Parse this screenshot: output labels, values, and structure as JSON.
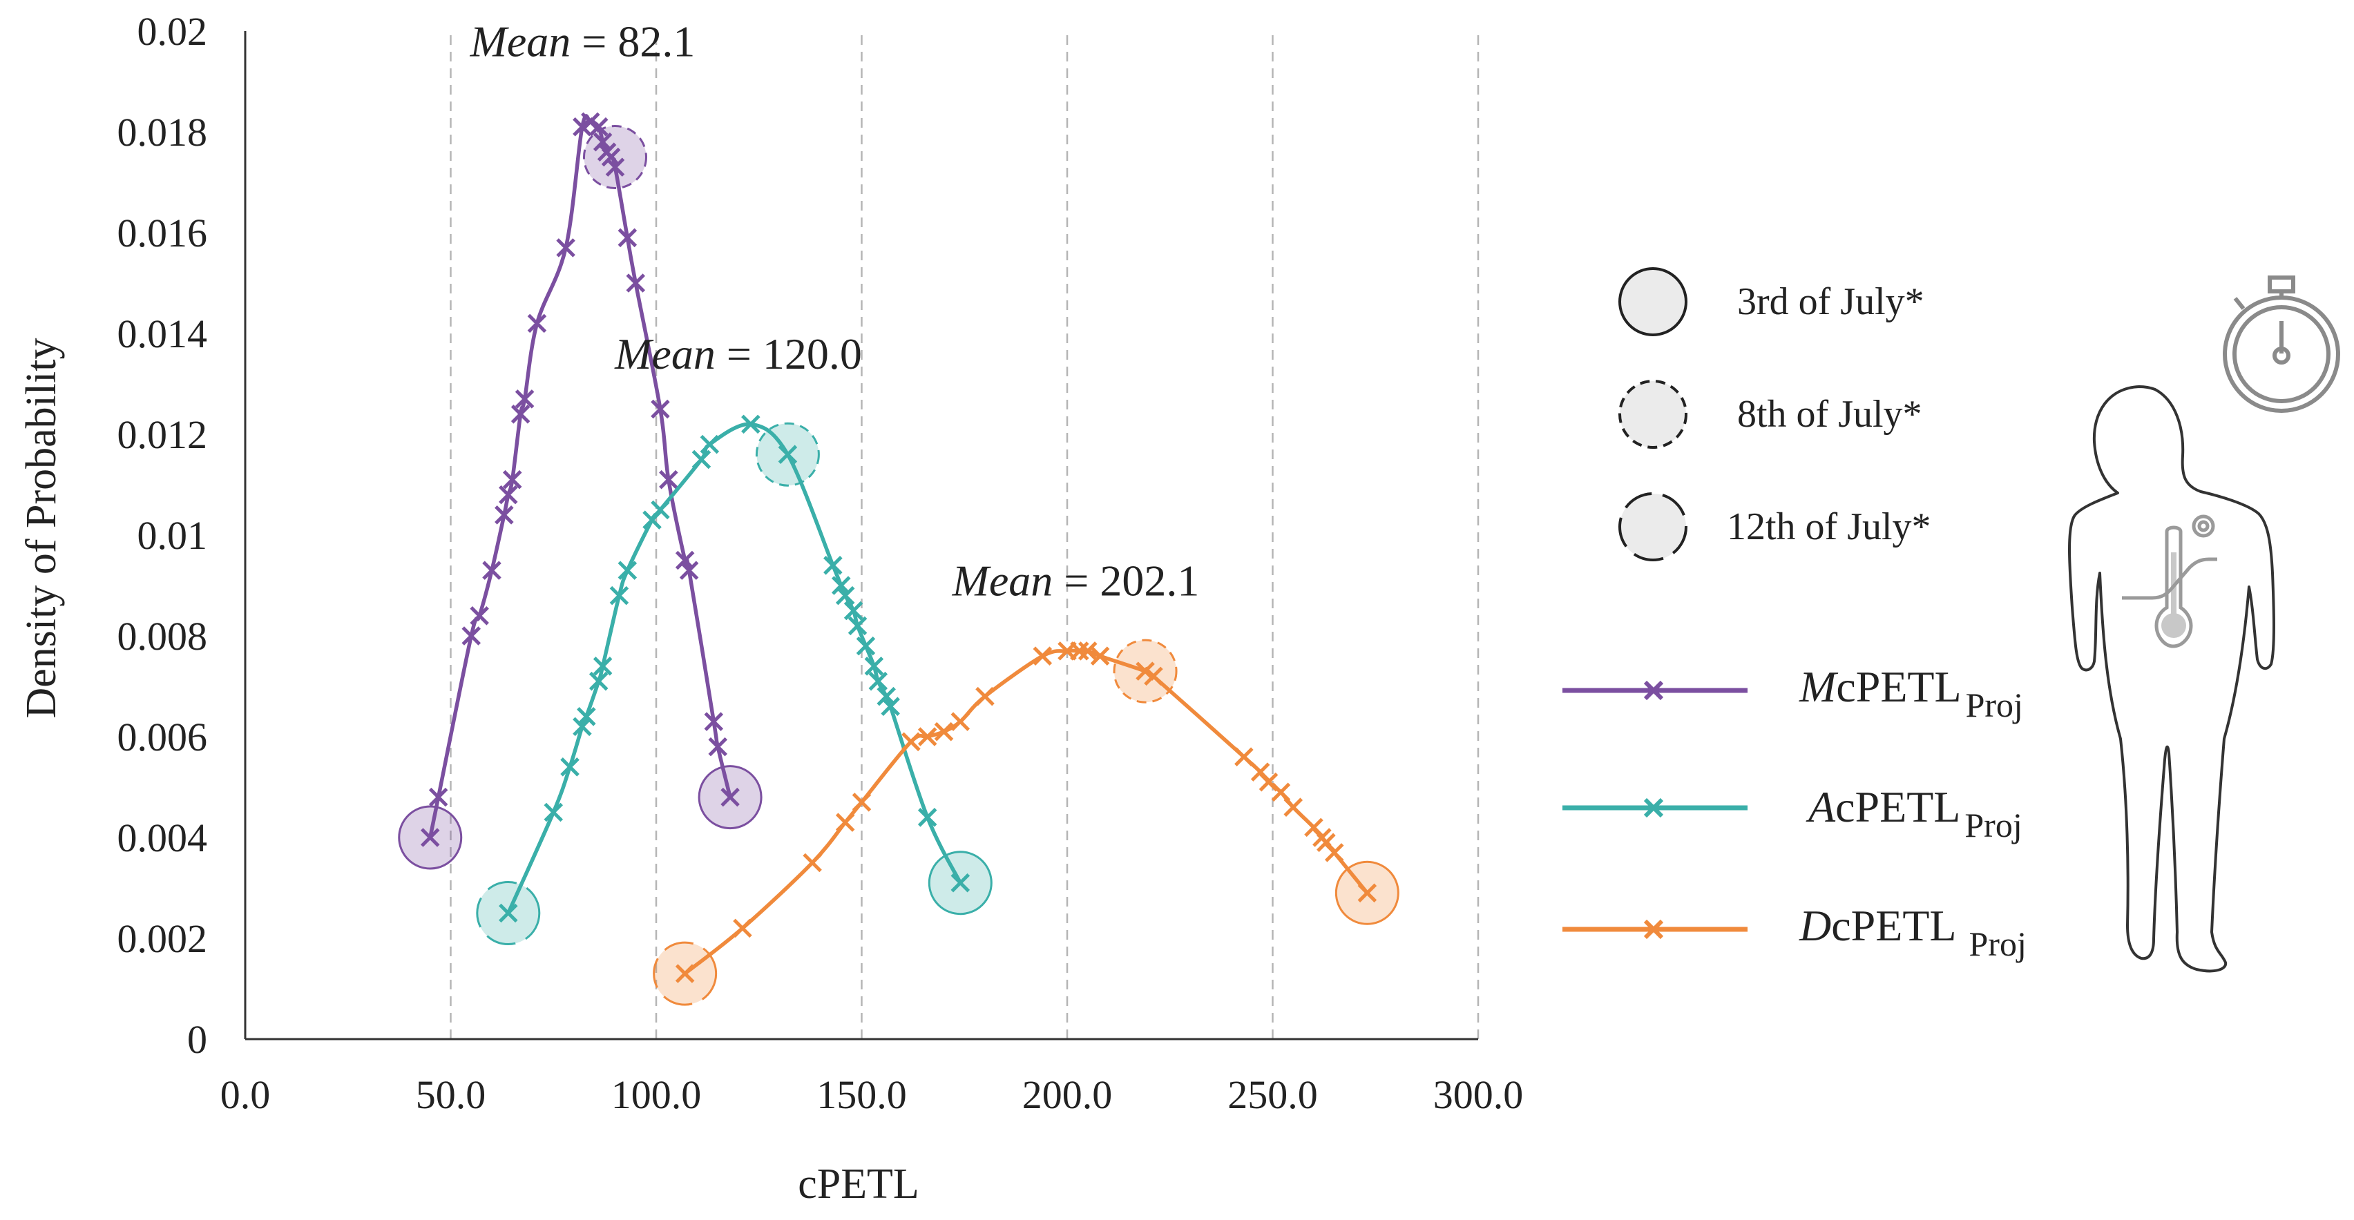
{
  "chart_data": {
    "type": "line",
    "xlabel": "cPETL",
    "ylabel": "Density of Probability",
    "xlim": [
      0,
      300
    ],
    "ylim": [
      0,
      0.02
    ],
    "x_ticks": [
      "0.0",
      "50.0",
      "100.0",
      "150.0",
      "200.0",
      "250.0",
      "300.0"
    ],
    "y_ticks": [
      "0",
      "0.002",
      "0.004",
      "0.006",
      "0.008",
      "0.01",
      "0.012",
      "0.014",
      "0.016",
      "0.018",
      "0.02"
    ],
    "x_tick_values": [
      0,
      50,
      100,
      150,
      200,
      250,
      300
    ],
    "y_tick_values": [
      0,
      0.002,
      0.004,
      0.006,
      0.008,
      0.01,
      0.012,
      0.014,
      0.016,
      0.018,
      0.02
    ],
    "x_gridlines": [
      50,
      100,
      150,
      200,
      250,
      300
    ],
    "series": [
      {
        "name": "McPETL Proj",
        "legend_prefix": "M",
        "legend_main": "cPETL",
        "legend_sub": "Proj",
        "color": "#7B4FA0",
        "mean_label": {
          "word": "Mean",
          "rest": " = 82.1",
          "x": 82.1,
          "y": 0.0195
        },
        "x": [
          45,
          47,
          55,
          57,
          60,
          63,
          64,
          65,
          67,
          68,
          71,
          78,
          82,
          84,
          86,
          87,
          88,
          89,
          90,
          93,
          95,
          101,
          103,
          107,
          108,
          114,
          115,
          118
        ],
        "y": [
          0.004,
          0.0048,
          0.008,
          0.0084,
          0.0093,
          0.0104,
          0.0108,
          0.0111,
          0.0124,
          0.0127,
          0.0142,
          0.0157,
          0.0181,
          0.0182,
          0.0181,
          0.0178,
          0.0176,
          0.0175,
          0.0173,
          0.0159,
          0.015,
          0.0125,
          0.0111,
          0.0095,
          0.0093,
          0.0063,
          0.0058,
          0.0048
        ],
        "markers": [
          {
            "x": 45,
            "y": 0.004,
            "date": "3rd of July*"
          },
          {
            "x": 90,
            "y": 0.0175,
            "date": "8th of July*"
          },
          {
            "x": 118,
            "y": 0.0048,
            "date": "3rd of July*"
          }
        ]
      },
      {
        "name": "AcPETL Proj",
        "legend_prefix": "A",
        "legend_main": "cPETL",
        "legend_sub": "Proj",
        "color": "#3AAFA9",
        "mean_label": {
          "word": "Mean",
          "rest": " = 120.0",
          "x": 120.0,
          "y": 0.0133
        },
        "x": [
          64,
          75,
          79,
          82,
          83,
          86,
          87,
          91,
          93,
          99,
          101,
          111,
          113,
          123,
          132,
          143,
          145,
          146,
          148,
          149,
          151,
          153,
          154,
          156,
          157,
          166,
          174
        ],
        "y": [
          0.0025,
          0.0045,
          0.0054,
          0.0062,
          0.0064,
          0.0071,
          0.0074,
          0.0088,
          0.0093,
          0.0103,
          0.0105,
          0.0115,
          0.0118,
          0.0122,
          0.0116,
          0.0094,
          0.009,
          0.0088,
          0.0085,
          0.0082,
          0.0078,
          0.0074,
          0.0071,
          0.0068,
          0.0066,
          0.0044,
          0.0031
        ],
        "markers": [
          {
            "x": 64,
            "y": 0.0025,
            "date": "12th of July*"
          },
          {
            "x": 132,
            "y": 0.0116,
            "date": "8th of July*"
          },
          {
            "x": 174,
            "y": 0.0031,
            "date": "3rd of July*"
          }
        ]
      },
      {
        "name": "DcPETL Proj",
        "legend_prefix": "D",
        "legend_main": "cPETL",
        "legend_sub": "Proj",
        "color": "#F08A3C",
        "mean_label": {
          "word": "Mean",
          "rest": " = 202.1",
          "x": 202.1,
          "y": 0.0088
        },
        "x": [
          107,
          121,
          138,
          146,
          150,
          162,
          166,
          170,
          174,
          180,
          194,
          200,
          203,
          205,
          208,
          219,
          221,
          243,
          247,
          249,
          252,
          255,
          260,
          262,
          263,
          265,
          273
        ],
        "y": [
          0.0013,
          0.0022,
          0.0035,
          0.0043,
          0.0047,
          0.0059,
          0.006,
          0.0061,
          0.0063,
          0.0068,
          0.0076,
          0.0077,
          0.0077,
          0.0077,
          0.0076,
          0.0073,
          0.0072,
          0.0056,
          0.0053,
          0.0051,
          0.0049,
          0.0046,
          0.0042,
          0.004,
          0.0039,
          0.0037,
          0.0029
        ],
        "markers": [
          {
            "x": 107,
            "y": 0.0013,
            "date": "12th of July*"
          },
          {
            "x": 219,
            "y": 0.0073,
            "date": "8th of July*"
          },
          {
            "x": 273,
            "y": 0.0029,
            "date": "3rd of July*"
          }
        ]
      }
    ],
    "date_legend": [
      {
        "label": "3rd of July*",
        "style": "solid"
      },
      {
        "label": "8th of July*",
        "style": "dashed"
      },
      {
        "label": "12th of July*",
        "style": "long-dashed"
      }
    ]
  },
  "decorations": {
    "stopwatch": "stopwatch-icon",
    "person": "person-silhouette-icon",
    "thermometer": "thermometer-icon",
    "marker_fill": "#ebebeb"
  }
}
